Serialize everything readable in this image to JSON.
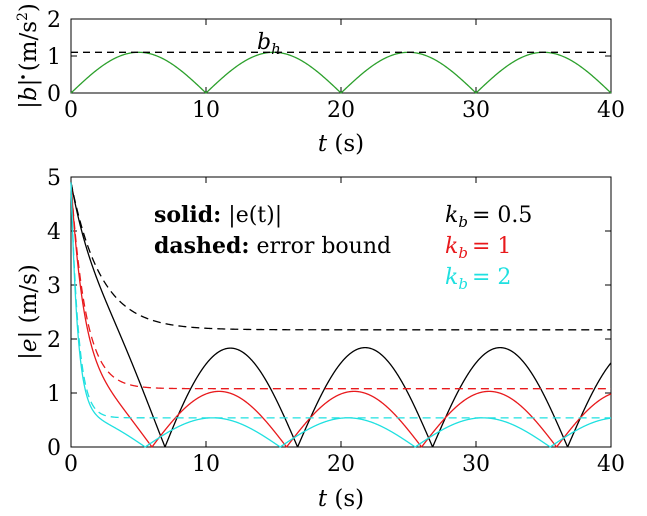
{
  "chart_data": [
    {
      "type": "line",
      "xlabel_var": "t",
      "xlabel_unit": "(s)",
      "ylabel_abs": "|",
      "ylabel_var": "b",
      "ylabel_unit": "(m/s",
      "ylabel_sup": "2",
      "ylabel_close": ")",
      "xlim": [
        0,
        40
      ],
      "ylim": [
        0,
        2
      ],
      "xticks": [
        "0",
        "10",
        "20",
        "30",
        "40"
      ],
      "yticks": [
        "0",
        "1",
        "2"
      ],
      "grid": false,
      "annotation_main": "b",
      "annotation_sub": "h",
      "series": [
        {
          "color": "#2ca02c",
          "style": "solid",
          "description": "|1.1 sin(pi t / 10)|",
          "amplitude": 1.1,
          "period": 10
        },
        {
          "color": "#000000",
          "style": "dashed",
          "value": 1.1
        }
      ]
    },
    {
      "type": "line",
      "xlabel_var": "t",
      "xlabel_unit": "(s)",
      "ylabel_var": "|e|",
      "ylabel_unit": "(m/s)",
      "xlim": [
        0,
        40
      ],
      "ylim": [
        0,
        5
      ],
      "xticks": [
        "0",
        "10",
        "20",
        "30",
        "40"
      ],
      "yticks": [
        "0",
        "1",
        "2",
        "3",
        "4",
        "5"
      ],
      "grid": false,
      "legend_text": {
        "solid_label": "solid:",
        "solid_desc": "|e(t)|",
        "dashed_label": "dashed:",
        "dashed_desc": "error bound"
      },
      "series": [
        {
          "name_var": "k",
          "name_sub": "b",
          "name_val": "= 0.5",
          "kb": 0.5,
          "color": "#000000",
          "bound_final": 2.17,
          "bound_tau": 2.2,
          "solid_peak": 1.84
        },
        {
          "name_var": "k",
          "name_sub": "b",
          "name_val": "= 1",
          "kb": 1,
          "color": "#e8191c",
          "bound_final": 1.08,
          "bound_tau": 1.1,
          "solid_peak": 1.03
        },
        {
          "name_var": "k",
          "name_sub": "b",
          "name_val": "= 2",
          "kb": 2,
          "color": "#1fe0e0",
          "bound_final": 0.54,
          "bound_tau": 0.55,
          "solid_peak": 0.54
        }
      ],
      "initial_value": 4.9
    }
  ]
}
